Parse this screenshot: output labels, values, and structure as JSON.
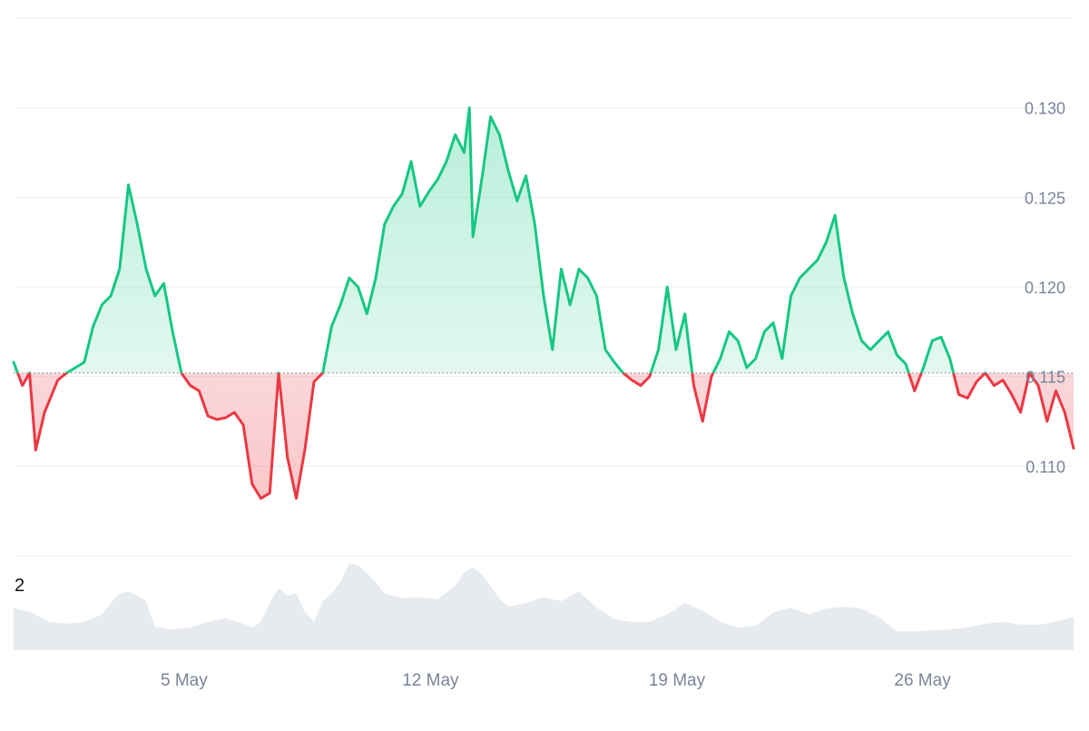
{
  "colors": {
    "up": "#16c784",
    "down": "#ea3943",
    "volume": "#e7ebf0",
    "grid": "#eceff3",
    "axis_text": "#7a8499",
    "baseline": "#8a94a6"
  },
  "volume_label": "2",
  "chart_data": {
    "type": "area",
    "baseline": 0.1152,
    "ylim": [
      0.105,
      0.135
    ],
    "x_range": [
      0,
      120
    ],
    "x_ticks": [
      {
        "x": 19.3,
        "label": "5 May"
      },
      {
        "x": 47.2,
        "label": "12 May"
      },
      {
        "x": 75.1,
        "label": "19 May"
      },
      {
        "x": 102.9,
        "label": "26 May"
      }
    ],
    "y_ticks": [
      {
        "value": 0.13,
        "label": "0.130"
      },
      {
        "value": 0.125,
        "label": "0.125"
      },
      {
        "value": 0.12,
        "label": "0.120"
      },
      {
        "value": 0.115,
        "label": "0.115"
      },
      {
        "value": 0.11,
        "label": "0.110"
      }
    ],
    "price": {
      "x": [
        0,
        1,
        1.8,
        2.5,
        3.5,
        5,
        6,
        8,
        9,
        10,
        11,
        12,
        13,
        14,
        15,
        16,
        17,
        18,
        19,
        20,
        21,
        22,
        23,
        24,
        25,
        26,
        27,
        28,
        29,
        30,
        31,
        32,
        33,
        34,
        35,
        36,
        37,
        38,
        39,
        40,
        41,
        42,
        43,
        44,
        45,
        46,
        47,
        48,
        49,
        50,
        51,
        51.6,
        52,
        53,
        54,
        55,
        56,
        57,
        58,
        59,
        60,
        61,
        62,
        63,
        64,
        65,
        66,
        67,
        68,
        69,
        70,
        71,
        72,
        73,
        74,
        75,
        76,
        77,
        78,
        79,
        80,
        81,
        82,
        83,
        84,
        85,
        86,
        87,
        88,
        89,
        90,
        91,
        92,
        93,
        94,
        95,
        96,
        97,
        98,
        99,
        100,
        101,
        102,
        103,
        104,
        105,
        106,
        107,
        108,
        109,
        110,
        111,
        112,
        113,
        114,
        115,
        116,
        117,
        118,
        119,
        120
      ],
      "y": [
        0.1158,
        0.1145,
        0.1152,
        0.1109,
        0.113,
        0.1148,
        0.1152,
        0.1158,
        0.1178,
        0.119,
        0.1195,
        0.121,
        0.1257,
        0.1235,
        0.121,
        0.1195,
        0.1202,
        0.1175,
        0.1152,
        0.1145,
        0.1142,
        0.1128,
        0.1126,
        0.1127,
        0.113,
        0.1123,
        0.109,
        0.1082,
        0.1085,
        0.1152,
        0.1105,
        0.1082,
        0.111,
        0.1147,
        0.1152,
        0.1178,
        0.119,
        0.1205,
        0.12,
        0.1185,
        0.1205,
        0.1235,
        0.1245,
        0.1252,
        0.127,
        0.1245,
        0.1253,
        0.126,
        0.127,
        0.1285,
        0.1275,
        0.13,
        0.1228,
        0.126,
        0.1295,
        0.1285,
        0.1265,
        0.1248,
        0.1262,
        0.1235,
        0.1195,
        0.1165,
        0.121,
        0.119,
        0.121,
        0.1205,
        0.1195,
        0.1165,
        0.1158,
        0.1152,
        0.1148,
        0.1145,
        0.115,
        0.1165,
        0.12,
        0.1165,
        0.1185,
        0.1145,
        0.1125,
        0.115,
        0.116,
        0.1175,
        0.117,
        0.1155,
        0.116,
        0.1175,
        0.118,
        0.116,
        0.1195,
        0.1205,
        0.121,
        0.1215,
        0.1225,
        0.124,
        0.1205,
        0.1185,
        0.117,
        0.1165,
        0.117,
        0.1175,
        0.1162,
        0.1157,
        0.1142,
        0.1155,
        0.117,
        0.1172,
        0.116,
        0.114,
        0.1138,
        0.1147,
        0.1152,
        0.1145,
        0.1148,
        0.114,
        0.113,
        0.1152,
        0.1145,
        0.1125,
        0.1142,
        0.113,
        0.111
      ]
    },
    "volume": {
      "x": [
        0,
        2,
        4,
        6,
        8,
        10,
        11,
        12,
        13,
        14,
        15,
        16,
        18,
        20,
        22,
        24,
        26,
        27,
        28,
        29,
        30,
        31,
        32,
        33,
        34,
        35,
        36,
        37,
        38,
        39,
        40,
        41,
        42,
        44,
        46,
        48,
        50,
        51,
        52,
        53,
        54,
        55,
        56,
        58,
        60,
        62,
        64,
        66,
        68,
        70,
        72,
        74,
        76,
        78,
        80,
        82,
        84,
        86,
        88,
        90,
        92,
        94,
        96,
        98,
        100,
        102,
        104,
        106,
        108,
        110,
        112,
        114,
        116,
        118,
        120
      ],
      "y": [
        0.45,
        0.4,
        0.3,
        0.28,
        0.3,
        0.38,
        0.5,
        0.6,
        0.62,
        0.58,
        0.52,
        0.25,
        0.22,
        0.24,
        0.3,
        0.34,
        0.28,
        0.24,
        0.3,
        0.5,
        0.66,
        0.58,
        0.6,
        0.4,
        0.3,
        0.52,
        0.6,
        0.72,
        0.92,
        0.9,
        0.82,
        0.72,
        0.6,
        0.55,
        0.56,
        0.54,
        0.68,
        0.82,
        0.88,
        0.8,
        0.68,
        0.54,
        0.46,
        0.5,
        0.56,
        0.52,
        0.62,
        0.45,
        0.33,
        0.3,
        0.3,
        0.38,
        0.5,
        0.42,
        0.3,
        0.24,
        0.26,
        0.4,
        0.45,
        0.38,
        0.44,
        0.46,
        0.44,
        0.35,
        0.2,
        0.2,
        0.21,
        0.22,
        0.24,
        0.28,
        0.3,
        0.27,
        0.27,
        0.3,
        0.35
      ]
    }
  }
}
